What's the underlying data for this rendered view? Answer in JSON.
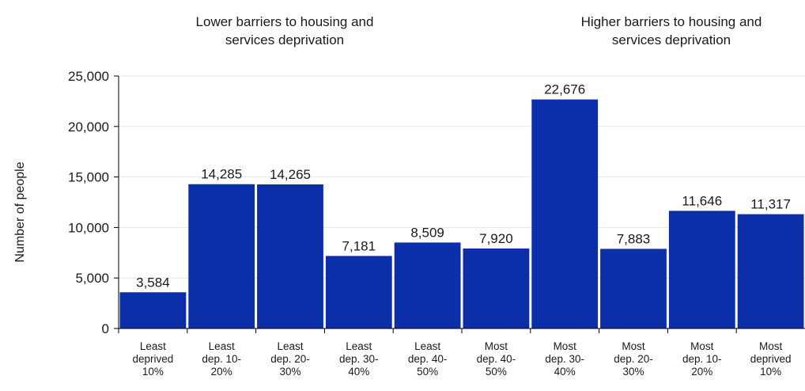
{
  "annotations": {
    "left": [
      "Lower barriers to housing and",
      "services deprivation"
    ],
    "right": [
      "Higher barriers to housing and",
      "services deprivation"
    ]
  },
  "colors": {
    "bar": "#0a2fa8",
    "axis": "#000000",
    "grid": "#e6e6e6"
  },
  "chart_data": {
    "type": "bar",
    "title": "",
    "xlabel": "",
    "ylabel": "Number of people",
    "ylim": [
      0,
      25000
    ],
    "yticks": [
      0,
      5000,
      10000,
      15000,
      20000,
      25000
    ],
    "ytick_labels": [
      "0",
      "5,000",
      "10,000",
      "15,000",
      "20,000",
      "25,000"
    ],
    "grid": true,
    "categories": [
      [
        "Least",
        "deprived",
        "10%"
      ],
      [
        "Least",
        "dep. 10-",
        "20%"
      ],
      [
        "Least",
        "dep. 20-",
        "30%"
      ],
      [
        "Least",
        "dep. 30-",
        "40%"
      ],
      [
        "Least",
        "dep. 40-",
        "50%"
      ],
      [
        "Most",
        "dep. 40-",
        "50%"
      ],
      [
        "Most",
        "dep. 30-",
        "40%"
      ],
      [
        "Most",
        "dep. 20-",
        "30%"
      ],
      [
        "Most",
        "dep. 10-",
        "20%"
      ],
      [
        "Most",
        "deprived",
        "10%"
      ]
    ],
    "values": [
      3584,
      14285,
      14265,
      7181,
      8509,
      7920,
      22676,
      7883,
      11646,
      11317
    ],
    "value_labels": [
      "3,584",
      "14,285",
      "14,265",
      "7,181",
      "8,509",
      "7,920",
      "22,676",
      "7,883",
      "11,646",
      "11,317"
    ]
  }
}
